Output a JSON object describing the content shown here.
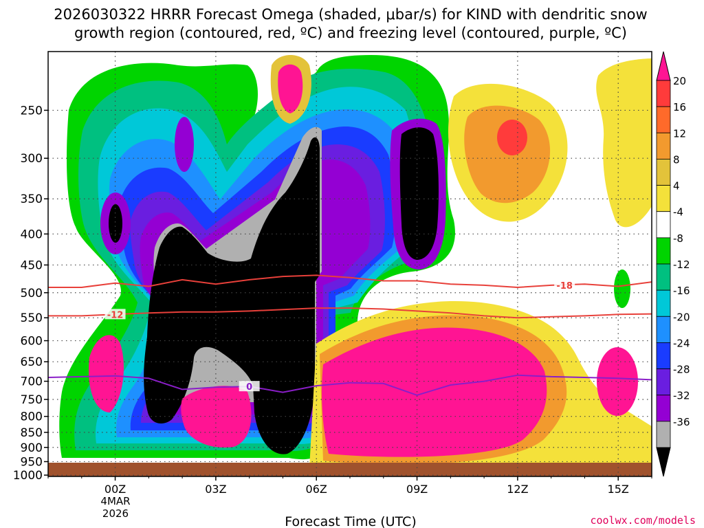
{
  "chart_data": {
    "type": "heatmap",
    "title_line1": "2026030322 HRRR Forecast Omega (shaded, μbar/s) for KIND with dendritic snow",
    "title_line2": "growth region (contoured, red, ºC) and freezing level (contoured, purple, ºC)",
    "xlabel": "Forecast Time (UTC)",
    "x_ticks": [
      "00Z",
      "03Z",
      "06Z",
      "09Z",
      "12Z",
      "15Z"
    ],
    "x_date_line1": "4MAR",
    "x_date_line2": "2026",
    "y_ticks": [
      250,
      300,
      350,
      400,
      450,
      500,
      550,
      600,
      650,
      700,
      750,
      800,
      850,
      900,
      950,
      1000
    ],
    "xlim_hours": [
      -2,
      16
    ],
    "ylim_hPa": [
      200,
      1005
    ],
    "grid": true,
    "credit": "coolwx.com/models",
    "colorbar": {
      "labels": [
        "20",
        "16",
        "12",
        "8",
        "4",
        "-4",
        "-8",
        "-12",
        "-16",
        "-20",
        "-24",
        "-28",
        "-32",
        "-36"
      ],
      "colors": [
        "#ff1493",
        "#ff3b3b",
        "#ff6a2a",
        "#f29a2e",
        "#e3c33a",
        "#f4e13a",
        "#ffffff",
        "#00d400",
        "#00c080",
        "#00c8d8",
        "#1e90ff",
        "#1a3cff",
        "#6a1ee0",
        "#9400d3",
        "#b0b0b0",
        "#000000"
      ]
    },
    "dgz_contours": [
      {
        "label": "-18",
        "label_hour": 13.4,
        "points": [
          [
            -2,
            490
          ],
          [
            -1,
            490
          ],
          [
            0,
            482
          ],
          [
            1,
            488
          ],
          [
            2,
            476
          ],
          [
            3,
            484
          ],
          [
            4,
            476
          ],
          [
            5,
            470
          ],
          [
            6,
            468
          ],
          [
            7,
            472
          ],
          [
            8,
            478
          ],
          [
            9,
            478
          ],
          [
            10,
            484
          ],
          [
            11,
            486
          ],
          [
            12,
            490
          ],
          [
            13,
            486
          ],
          [
            14,
            484
          ],
          [
            15,
            488
          ],
          [
            16,
            480
          ]
        ]
      },
      {
        "label": "-12",
        "label_hour": 0.0,
        "points": [
          [
            -2,
            546
          ],
          [
            -1,
            546
          ],
          [
            0,
            543
          ],
          [
            1,
            540
          ],
          [
            2,
            538
          ],
          [
            3,
            538
          ],
          [
            4,
            536
          ],
          [
            5,
            533
          ],
          [
            6,
            530
          ],
          [
            7,
            530
          ],
          [
            8,
            532
          ],
          [
            9,
            536
          ],
          [
            10,
            540
          ],
          [
            11,
            546
          ],
          [
            12,
            550
          ],
          [
            13,
            548
          ],
          [
            14,
            546
          ],
          [
            15,
            543
          ],
          [
            16,
            542
          ]
        ]
      }
    ],
    "freezing_contours": [
      {
        "label": "0",
        "label_hour": 4.0,
        "points": [
          [
            -2,
            690
          ],
          [
            -1,
            688
          ],
          [
            0,
            686
          ],
          [
            1,
            692
          ],
          [
            2,
            722
          ],
          [
            3,
            716
          ],
          [
            4,
            714
          ],
          [
            5,
            730
          ],
          [
            6,
            712
          ],
          [
            7,
            704
          ],
          [
            8,
            706
          ],
          [
            9,
            738
          ],
          [
            10,
            710
          ],
          [
            11,
            700
          ],
          [
            12,
            684
          ],
          [
            13,
            688
          ],
          [
            14,
            690
          ],
          [
            15,
            692
          ],
          [
            16,
            696
          ]
        ]
      }
    ]
  }
}
